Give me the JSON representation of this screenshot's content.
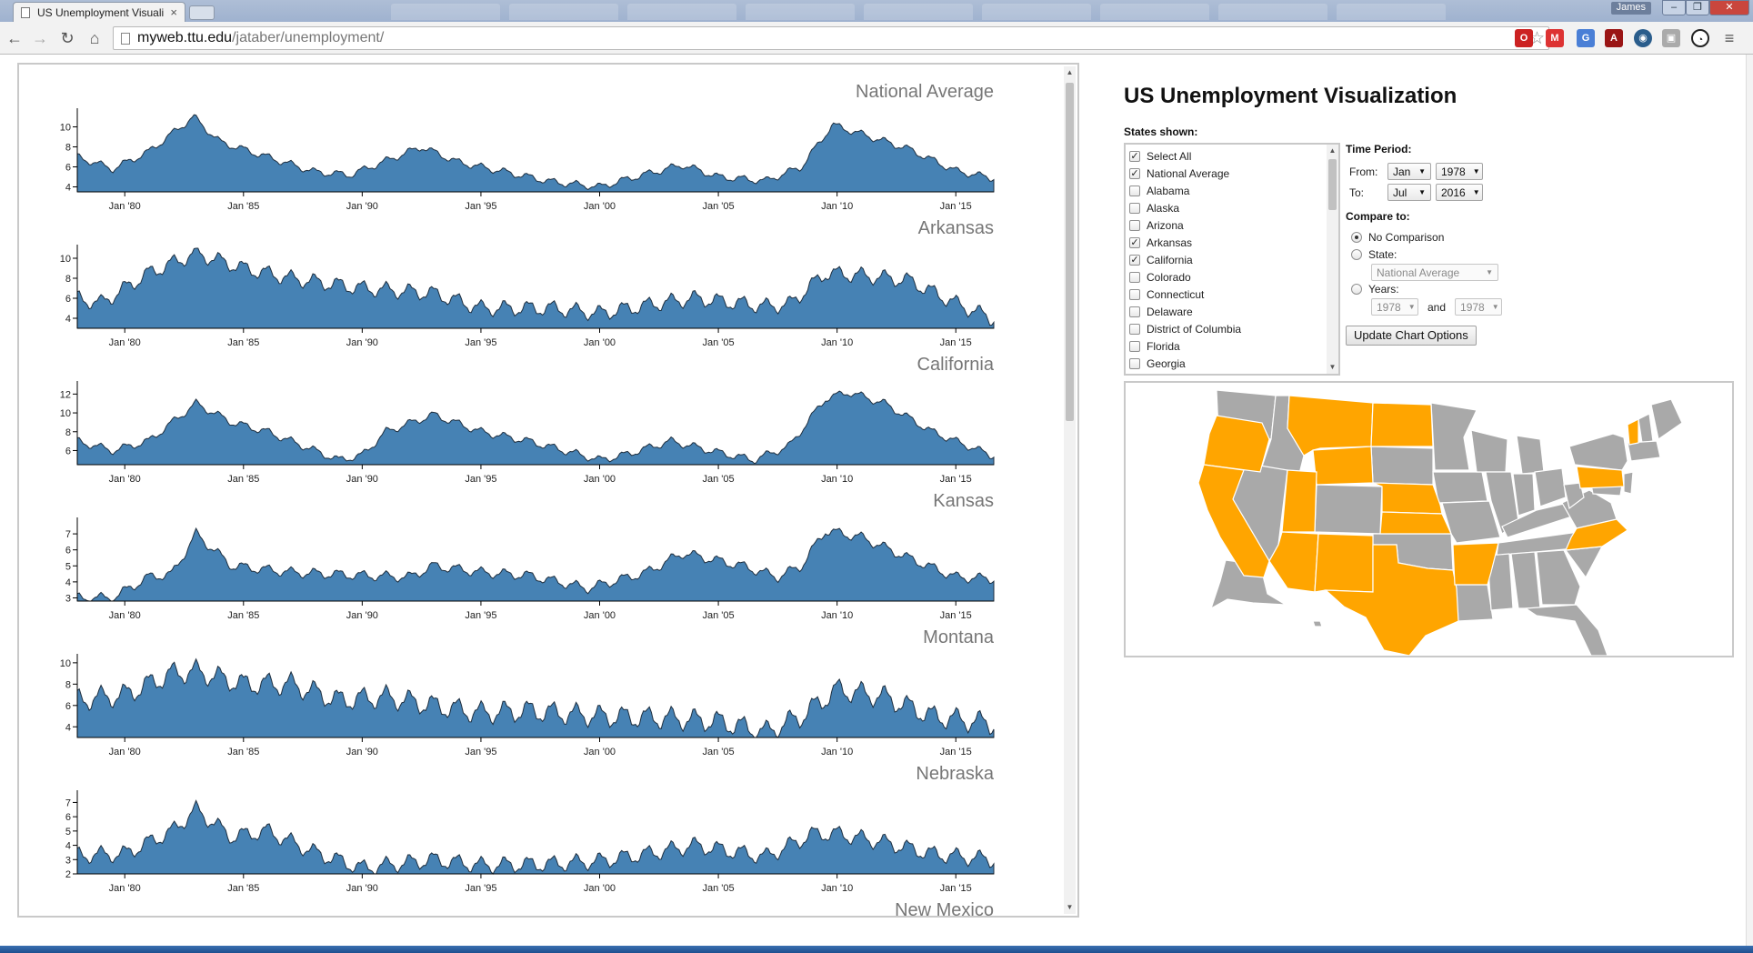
{
  "browser": {
    "tab_title": "US Unemployment Visuali",
    "user_name": "James",
    "url_host": "myweb.ttu.edu",
    "url_path": "/jataber/unemployment/"
  },
  "page": {
    "heading": "US Unemployment Visualization"
  },
  "controls": {
    "states_shown_label": "States shown:",
    "state_options": [
      {
        "label": "Select All",
        "checked": true
      },
      {
        "label": "National Average",
        "checked": true
      },
      {
        "label": "Alabama",
        "checked": false
      },
      {
        "label": "Alaska",
        "checked": false
      },
      {
        "label": "Arizona",
        "checked": false
      },
      {
        "label": "Arkansas",
        "checked": true
      },
      {
        "label": "California",
        "checked": true
      },
      {
        "label": "Colorado",
        "checked": false
      },
      {
        "label": "Connecticut",
        "checked": false
      },
      {
        "label": "Delaware",
        "checked": false
      },
      {
        "label": "District of Columbia",
        "checked": false
      },
      {
        "label": "Florida",
        "checked": false
      },
      {
        "label": "Georgia",
        "checked": false
      }
    ],
    "time_period_label": "Time Period:",
    "from_label": "From:",
    "from_month": "Jan",
    "from_year": "1978",
    "to_label": "To:",
    "to_month": "Jul",
    "to_year": "2016",
    "compare_label": "Compare to:",
    "no_comparison_label": "No Comparison",
    "state_label": "State:",
    "compare_state_value": "National Average",
    "years_label": "Years:",
    "compare_year_a": "1978",
    "and_label": "and",
    "compare_year_b": "1978",
    "update_button": "Update Chart Options"
  },
  "map": {
    "highlight_color": "#FFA500",
    "base_color": "#A9A9A9",
    "highlighted_states": [
      "California",
      "Oregon",
      "Montana",
      "North Dakota",
      "Wyoming",
      "Utah",
      "Nebraska",
      "Kansas",
      "Arizona",
      "Texas",
      "New Mexico",
      "Arkansas",
      "Pennsylvania",
      "Vermont",
      "North Carolina"
    ]
  },
  "chart_data": [
    {
      "type": "area",
      "title": "National Average",
      "x_ticks": [
        "Jan '80",
        "Jan '85",
        "Jan '90",
        "Jan '95",
        "Jan '00",
        "Jan '05",
        "Jan '10",
        "Jan '15"
      ],
      "y_ticks": [
        4,
        6,
        8,
        10
      ],
      "ylim": [
        3.5,
        11.5
      ],
      "color": "#4682B4",
      "anchors": [
        [
          1978.0,
          7.0
        ],
        [
          1979.5,
          5.8
        ],
        [
          1981.0,
          7.5
        ],
        [
          1982.9,
          11.0
        ],
        [
          1984.0,
          8.5
        ],
        [
          1986.0,
          7.0
        ],
        [
          1988.0,
          5.5
        ],
        [
          1989.5,
          5.2
        ],
        [
          1992.5,
          8.0
        ],
        [
          1994.0,
          6.5
        ],
        [
          1996.0,
          5.5
        ],
        [
          1998.0,
          4.5
        ],
        [
          2000.0,
          4.0
        ],
        [
          2001.5,
          5.0
        ],
        [
          2003.5,
          6.2
        ],
        [
          2005.0,
          5.0
        ],
        [
          2007.0,
          4.6
        ],
        [
          2008.5,
          6.0
        ],
        [
          2009.8,
          10.2
        ],
        [
          2011.0,
          9.3
        ],
        [
          2013.0,
          7.8
        ],
        [
          2015.0,
          5.6
        ],
        [
          2016.5,
          4.9
        ]
      ],
      "seasonal": 0.35
    },
    {
      "type": "area",
      "title": "Arkansas",
      "x_ticks": [
        "Jan '80",
        "Jan '85",
        "Jan '90",
        "Jan '95",
        "Jan '00",
        "Jan '05",
        "Jan '10",
        "Jan '15"
      ],
      "y_ticks": [
        4,
        6,
        8,
        10
      ],
      "ylim": [
        3.0,
        11.0
      ],
      "color": "#4682B4",
      "anchors": [
        [
          1978.0,
          6.0
        ],
        [
          1979.0,
          5.5
        ],
        [
          1981.0,
          8.5
        ],
        [
          1983.0,
          10.5
        ],
        [
          1985.0,
          9.0
        ],
        [
          1987.0,
          8.0
        ],
        [
          1990.0,
          7.0
        ],
        [
          1993.0,
          6.5
        ],
        [
          1995.0,
          5.0
        ],
        [
          1998.0,
          5.0
        ],
        [
          2000.0,
          4.5
        ],
        [
          2002.5,
          5.5
        ],
        [
          2004.0,
          6.0
        ],
        [
          2007.0,
          5.2
        ],
        [
          2008.0,
          5.4
        ],
        [
          2009.5,
          8.5
        ],
        [
          2011.0,
          8.3
        ],
        [
          2013.0,
          7.8
        ],
        [
          2015.0,
          5.5
        ],
        [
          2016.5,
          4.0
        ]
      ],
      "seasonal": 0.75
    },
    {
      "type": "area",
      "title": "California",
      "x_ticks": [
        "Jan '80",
        "Jan '85",
        "Jan '90",
        "Jan '95",
        "Jan '00",
        "Jan '05",
        "Jan '10",
        "Jan '15"
      ],
      "y_ticks": [
        6,
        8,
        10,
        12
      ],
      "ylim": [
        4.5,
        13.0
      ],
      "color": "#4682B4",
      "anchors": [
        [
          1978.0,
          7.0
        ],
        [
          1979.5,
          6.0
        ],
        [
          1981.0,
          7.0
        ],
        [
          1983.0,
          11.0
        ],
        [
          1984.5,
          9.0
        ],
        [
          1986.0,
          8.0
        ],
        [
          1989.0,
          5.0
        ],
        [
          1990.0,
          5.5
        ],
        [
          1991.0,
          8.0
        ],
        [
          1993.0,
          9.8
        ],
        [
          1995.0,
          8.0
        ],
        [
          1997.0,
          7.0
        ],
        [
          2000.0,
          5.0
        ],
        [
          2001.0,
          5.5
        ],
        [
          2003.0,
          7.0
        ],
        [
          2005.0,
          5.8
        ],
        [
          2006.5,
          5.0
        ],
        [
          2008.0,
          6.5
        ],
        [
          2009.5,
          11.5
        ],
        [
          2010.5,
          12.2
        ],
        [
          2012.0,
          11.0
        ],
        [
          2014.0,
          8.0
        ],
        [
          2016.5,
          5.5
        ]
      ],
      "seasonal": 0.4
    },
    {
      "type": "area",
      "title": "Kansas",
      "x_ticks": [
        "Jan '80",
        "Jan '85",
        "Jan '90",
        "Jan '95",
        "Jan '00",
        "Jan '05",
        "Jan '10",
        "Jan '15"
      ],
      "y_ticks": [
        3,
        4,
        5,
        6,
        7
      ],
      "ylim": [
        2.8,
        7.8
      ],
      "color": "#4682B4",
      "anchors": [
        [
          1978.0,
          3.0
        ],
        [
          1979.5,
          3.0
        ],
        [
          1981.0,
          4.3
        ],
        [
          1982.0,
          4.5
        ],
        [
          1983.0,
          7.0
        ],
        [
          1984.5,
          5.0
        ],
        [
          1987.0,
          4.6
        ],
        [
          1990.0,
          4.4
        ],
        [
          1992.0,
          4.3
        ],
        [
          1993.0,
          5.0
        ],
        [
          1995.0,
          4.6
        ],
        [
          1997.0,
          4.4
        ],
        [
          1999.5,
          3.6
        ],
        [
          2002.0,
          4.6
        ],
        [
          2003.5,
          5.8
        ],
        [
          2006.0,
          5.0
        ],
        [
          2007.5,
          4.3
        ],
        [
          2008.5,
          5.0
        ],
        [
          2009.5,
          7.2
        ],
        [
          2011.0,
          6.8
        ],
        [
          2013.0,
          5.5
        ],
        [
          2015.0,
          4.3
        ],
        [
          2016.5,
          4.2
        ]
      ],
      "seasonal": 0.3
    },
    {
      "type": "area",
      "title": "Montana",
      "x_ticks": [
        "Jan '80",
        "Jan '85",
        "Jan '90",
        "Jan '95",
        "Jan '00",
        "Jan '05",
        "Jan '10",
        "Jan '15"
      ],
      "y_ticks": [
        4,
        6,
        8,
        10
      ],
      "ylim": [
        3.0,
        10.5
      ],
      "color": "#4682B4",
      "anchors": [
        [
          1978.0,
          6.5
        ],
        [
          1980.0,
          7.0
        ],
        [
          1982.0,
          9.0
        ],
        [
          1983.0,
          9.2
        ],
        [
          1985.0,
          8.0
        ],
        [
          1987.0,
          8.0
        ],
        [
          1989.0,
          6.5
        ],
        [
          1991.0,
          6.8
        ],
        [
          1993.0,
          6.0
        ],
        [
          1995.0,
          5.3
        ],
        [
          1997.0,
          5.5
        ],
        [
          2000.0,
          5.0
        ],
        [
          2003.0,
          4.8
        ],
        [
          2005.0,
          4.5
        ],
        [
          2007.0,
          3.5
        ],
        [
          2008.5,
          5.0
        ],
        [
          2010.0,
          7.5
        ],
        [
          2012.0,
          6.8
        ],
        [
          2014.0,
          5.0
        ],
        [
          2016.5,
          4.3
        ]
      ],
      "seasonal": 1.0
    },
    {
      "type": "area",
      "title": "Nebraska",
      "x_ticks": [
        "Jan '80",
        "Jan '85",
        "Jan '90",
        "Jan '95",
        "Jan '00",
        "Jan '05",
        "Jan '10",
        "Jan '15"
      ],
      "y_ticks": [
        2,
        3,
        4,
        5,
        6,
        7
      ],
      "ylim": [
        2.0,
        7.6
      ],
      "color": "#4682B4",
      "anchors": [
        [
          1978.0,
          3.3
        ],
        [
          1980.0,
          3.4
        ],
        [
          1982.0,
          5.0
        ],
        [
          1983.0,
          6.5
        ],
        [
          1984.5,
          4.6
        ],
        [
          1986.0,
          5.0
        ],
        [
          1988.0,
          3.5
        ],
        [
          1990.0,
          2.4
        ],
        [
          1993.0,
          3.0
        ],
        [
          1995.0,
          2.6
        ],
        [
          1998.0,
          2.7
        ],
        [
          2000.0,
          2.9
        ],
        [
          2002.0,
          3.4
        ],
        [
          2004.0,
          4.0
        ],
        [
          2007.0,
          3.2
        ],
        [
          2009.0,
          4.8
        ],
        [
          2010.0,
          4.8
        ],
        [
          2012.0,
          4.2
        ],
        [
          2014.0,
          3.4
        ],
        [
          2016.5,
          3.0
        ]
      ],
      "seasonal": 0.55
    },
    {
      "type": "area",
      "title": "New Mexico",
      "x_ticks": [],
      "y_ticks": [],
      "ylim": [
        0,
        10
      ],
      "color": "#4682B4",
      "anchors": [],
      "seasonal": 0
    }
  ]
}
